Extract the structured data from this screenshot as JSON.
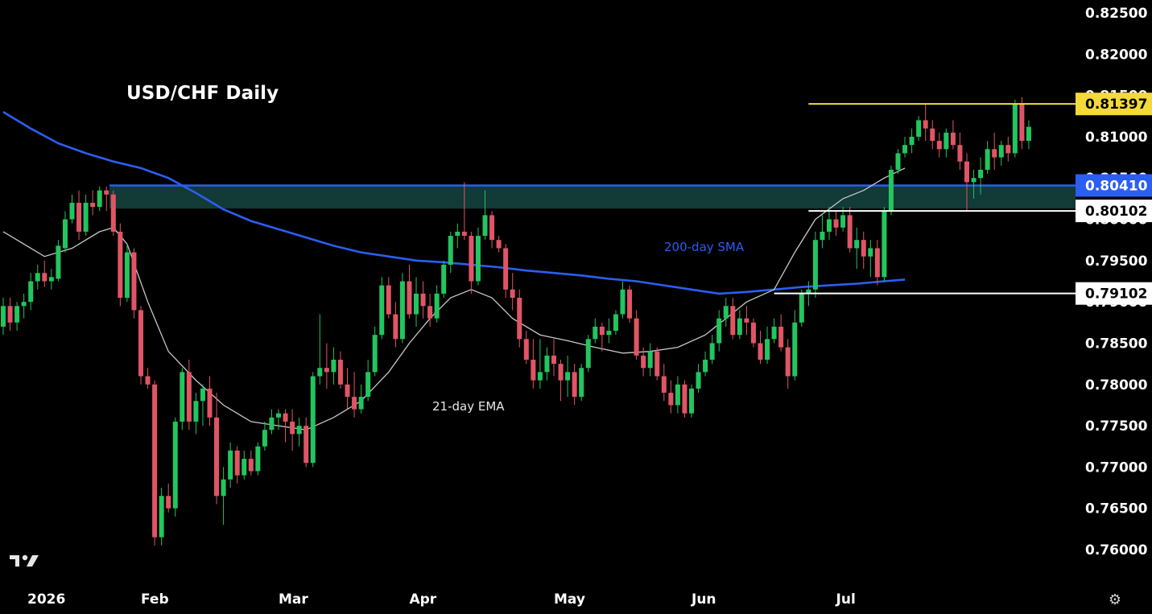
{
  "chart_data": {
    "type": "candlestick",
    "title": "USD/CHF Daily",
    "ylim": [
      0.7565,
      0.8275
    ],
    "y_ticks": [
      "0.82500",
      "0.82000",
      "0.81500",
      "0.81000",
      "0.80500",
      "0.80000",
      "0.79500",
      "0.79000",
      "0.78500",
      "0.78000",
      "0.77500",
      "0.77000",
      "0.76500",
      "0.76000"
    ],
    "x_ticks": [
      {
        "label": "2026",
        "index": 0
      },
      {
        "label": "Feb",
        "index": 20
      },
      {
        "label": "Mar",
        "index": 40
      },
      {
        "label": "Apr",
        "index": 59
      },
      {
        "label": "May",
        "index": 80
      },
      {
        "label": "Jun",
        "index": 100
      },
      {
        "label": "Jul",
        "index": 121
      }
    ],
    "grid": false,
    "colors": {
      "up": "#22c55e",
      "down": "#e05565",
      "sma": "#2b5ef2",
      "ema": "#c8c8c8",
      "zone": "#123a36",
      "zone_line": "#2b5ef2",
      "high_line": "#f4d93a"
    },
    "ohlc": [
      [
        0.787,
        0.7905,
        0.786,
        0.7895
      ],
      [
        0.7895,
        0.7905,
        0.7865,
        0.7875
      ],
      [
        0.7875,
        0.79,
        0.7865,
        0.7895
      ],
      [
        0.7895,
        0.791,
        0.788,
        0.79
      ],
      [
        0.79,
        0.7935,
        0.789,
        0.7925
      ],
      [
        0.7925,
        0.7945,
        0.7915,
        0.7935
      ],
      [
        0.7935,
        0.795,
        0.7918,
        0.7925
      ],
      [
        0.7925,
        0.794,
        0.7915,
        0.793
      ],
      [
        0.7928,
        0.7975,
        0.7925,
        0.7968
      ],
      [
        0.7965,
        0.801,
        0.796,
        0.8
      ],
      [
        0.8,
        0.803,
        0.7995,
        0.802
      ],
      [
        0.802,
        0.8035,
        0.7975,
        0.7985
      ],
      [
        0.7985,
        0.803,
        0.798,
        0.802
      ],
      [
        0.802,
        0.8035,
        0.8005,
        0.8015
      ],
      [
        0.8015,
        0.804,
        0.801,
        0.8035
      ],
      [
        0.8035,
        0.804,
        0.801,
        0.803
      ],
      [
        0.803,
        0.8035,
        0.798,
        0.7985
      ],
      [
        0.7985,
        0.7995,
        0.7895,
        0.7905
      ],
      [
        0.7905,
        0.797,
        0.79,
        0.796
      ],
      [
        0.796,
        0.7965,
        0.788,
        0.789
      ],
      [
        0.789,
        0.7895,
        0.78,
        0.781
      ],
      [
        0.781,
        0.782,
        0.7795,
        0.78
      ],
      [
        0.78,
        0.7805,
        0.7605,
        0.7615
      ],
      [
        0.7615,
        0.7675,
        0.7605,
        0.7665
      ],
      [
        0.7665,
        0.768,
        0.7645,
        0.765
      ],
      [
        0.765,
        0.776,
        0.764,
        0.7755
      ],
      [
        0.7755,
        0.782,
        0.7745,
        0.7815
      ],
      [
        0.7815,
        0.783,
        0.7745,
        0.7755
      ],
      [
        0.7755,
        0.779,
        0.774,
        0.778
      ],
      [
        0.778,
        0.78,
        0.775,
        0.7795
      ],
      [
        0.7795,
        0.781,
        0.775,
        0.776
      ],
      [
        0.776,
        0.779,
        0.7655,
        0.7665
      ],
      [
        0.7665,
        0.77,
        0.763,
        0.7685
      ],
      [
        0.7685,
        0.773,
        0.7675,
        0.772
      ],
      [
        0.772,
        0.7725,
        0.768,
        0.769
      ],
      [
        0.769,
        0.772,
        0.7685,
        0.771
      ],
      [
        0.771,
        0.772,
        0.769,
        0.7695
      ],
      [
        0.7695,
        0.773,
        0.769,
        0.7725
      ],
      [
        0.7725,
        0.7755,
        0.772,
        0.7745
      ],
      [
        0.7745,
        0.777,
        0.774,
        0.776
      ],
      [
        0.776,
        0.777,
        0.7745,
        0.7765
      ],
      [
        0.7765,
        0.777,
        0.773,
        0.7755
      ],
      [
        0.7755,
        0.777,
        0.772,
        0.774
      ],
      [
        0.774,
        0.776,
        0.7725,
        0.775
      ],
      [
        0.775,
        0.776,
        0.77,
        0.7705
      ],
      [
        0.7705,
        0.7815,
        0.77,
        0.781
      ],
      [
        0.781,
        0.7885,
        0.78,
        0.782
      ],
      [
        0.782,
        0.785,
        0.7795,
        0.7815
      ],
      [
        0.7815,
        0.7845,
        0.78,
        0.783
      ],
      [
        0.783,
        0.784,
        0.7795,
        0.78
      ],
      [
        0.78,
        0.782,
        0.777,
        0.7785
      ],
      [
        0.7785,
        0.7815,
        0.776,
        0.777
      ],
      [
        0.777,
        0.78,
        0.7765,
        0.7785
      ],
      [
        0.7785,
        0.783,
        0.778,
        0.7815
      ],
      [
        0.7815,
        0.787,
        0.781,
        0.786
      ],
      [
        0.786,
        0.793,
        0.7855,
        0.792
      ],
      [
        0.792,
        0.793,
        0.788,
        0.7885
      ],
      [
        0.7885,
        0.79,
        0.7845,
        0.7855
      ],
      [
        0.7855,
        0.7935,
        0.785,
        0.7925
      ],
      [
        0.7925,
        0.7945,
        0.788,
        0.7885
      ],
      [
        0.7885,
        0.793,
        0.787,
        0.791
      ],
      [
        0.791,
        0.7925,
        0.788,
        0.7895
      ],
      [
        0.7895,
        0.791,
        0.787,
        0.788
      ],
      [
        0.788,
        0.792,
        0.7875,
        0.791
      ],
      [
        0.791,
        0.795,
        0.7905,
        0.7945
      ],
      [
        0.7945,
        0.7985,
        0.7935,
        0.798
      ],
      [
        0.798,
        0.7995,
        0.7965,
        0.7985
      ],
      [
        0.7985,
        0.8045,
        0.7975,
        0.798
      ],
      [
        0.798,
        0.7985,
        0.791,
        0.7925
      ],
      [
        0.7925,
        0.799,
        0.792,
        0.798
      ],
      [
        0.798,
        0.8035,
        0.7975,
        0.8005
      ],
      [
        0.8005,
        0.801,
        0.7965,
        0.7975
      ],
      [
        0.7975,
        0.798,
        0.796,
        0.7965
      ],
      [
        0.7965,
        0.797,
        0.7905,
        0.7915
      ],
      [
        0.7915,
        0.7935,
        0.789,
        0.7905
      ],
      [
        0.7905,
        0.7915,
        0.7845,
        0.7855
      ],
      [
        0.7855,
        0.7865,
        0.7825,
        0.783
      ],
      [
        0.783,
        0.7855,
        0.7795,
        0.7805
      ],
      [
        0.7805,
        0.7855,
        0.7795,
        0.7815
      ],
      [
        0.7815,
        0.7845,
        0.7805,
        0.7835
      ],
      [
        0.7835,
        0.7855,
        0.781,
        0.7825
      ],
      [
        0.7825,
        0.783,
        0.778,
        0.7805
      ],
      [
        0.7805,
        0.7835,
        0.7785,
        0.7815
      ],
      [
        0.7815,
        0.7825,
        0.7775,
        0.7785
      ],
      [
        0.7785,
        0.7825,
        0.778,
        0.782
      ],
      [
        0.782,
        0.786,
        0.7815,
        0.7855
      ],
      [
        0.7855,
        0.788,
        0.785,
        0.787
      ],
      [
        0.787,
        0.7875,
        0.784,
        0.786
      ],
      [
        0.786,
        0.788,
        0.785,
        0.7865
      ],
      [
        0.7865,
        0.789,
        0.786,
        0.7885
      ],
      [
        0.7885,
        0.7925,
        0.788,
        0.7915
      ],
      [
        0.7915,
        0.792,
        0.7875,
        0.788
      ],
      [
        0.788,
        0.789,
        0.783,
        0.7835
      ],
      [
        0.7835,
        0.7845,
        0.781,
        0.782
      ],
      [
        0.782,
        0.785,
        0.781,
        0.784
      ],
      [
        0.784,
        0.7845,
        0.7805,
        0.781
      ],
      [
        0.781,
        0.7825,
        0.778,
        0.779
      ],
      [
        0.779,
        0.7805,
        0.7765,
        0.7775
      ],
      [
        0.7775,
        0.781,
        0.7765,
        0.78
      ],
      [
        0.78,
        0.7805,
        0.776,
        0.7765
      ],
      [
        0.7765,
        0.78,
        0.776,
        0.7795
      ],
      [
        0.7795,
        0.7825,
        0.779,
        0.7815
      ],
      [
        0.7815,
        0.784,
        0.781,
        0.783
      ],
      [
        0.783,
        0.786,
        0.7825,
        0.785
      ],
      [
        0.785,
        0.789,
        0.784,
        0.788
      ],
      [
        0.788,
        0.7905,
        0.787,
        0.7895
      ],
      [
        0.7895,
        0.7905,
        0.7855,
        0.786
      ],
      [
        0.786,
        0.789,
        0.7855,
        0.788
      ],
      [
        0.788,
        0.7895,
        0.786,
        0.7875
      ],
      [
        0.7875,
        0.788,
        0.7845,
        0.785
      ],
      [
        0.785,
        0.7865,
        0.7825,
        0.783
      ],
      [
        0.783,
        0.787,
        0.7825,
        0.7855
      ],
      [
        0.7855,
        0.788,
        0.785,
        0.787
      ],
      [
        0.787,
        0.7885,
        0.784,
        0.7845
      ],
      [
        0.7845,
        0.7855,
        0.7795,
        0.781
      ],
      [
        0.781,
        0.789,
        0.7805,
        0.7875
      ],
      [
        0.7875,
        0.7915,
        0.787,
        0.791
      ],
      [
        0.791,
        0.7925,
        0.7895,
        0.7915
      ],
      [
        0.7915,
        0.7985,
        0.7905,
        0.7975
      ],
      [
        0.7975,
        0.8005,
        0.7965,
        0.7985
      ]
    ],
    "ohlc_tail_note": "continues below",
    "ohlc_2": [
      [
        0.7985,
        0.8015,
        0.7975,
        0.8
      ],
      [
        0.8,
        0.801,
        0.798,
        0.799
      ],
      [
        0.799,
        0.8015,
        0.7985,
        0.8005
      ],
      [
        0.8005,
        0.8015,
        0.796,
        0.7965
      ],
      [
        0.7965,
        0.799,
        0.794,
        0.7975
      ],
      [
        0.7975,
        0.7985,
        0.794,
        0.7955
      ],
      [
        0.7955,
        0.7975,
        0.793,
        0.7965
      ],
      [
        0.7965,
        0.7975,
        0.792,
        0.793
      ],
      [
        0.793,
        0.8015,
        0.7925,
        0.801
      ],
      [
        0.801,
        0.8065,
        0.8005,
        0.806
      ],
      [
        0.806,
        0.8085,
        0.8055,
        0.808
      ],
      [
        0.808,
        0.81,
        0.8075,
        0.809
      ],
      [
        0.809,
        0.811,
        0.808,
        0.81
      ],
      [
        0.81,
        0.8125,
        0.8095,
        0.812
      ],
      [
        0.812,
        0.814,
        0.8095,
        0.811
      ],
      [
        0.811,
        0.812,
        0.8085,
        0.8095
      ],
      [
        0.8095,
        0.8105,
        0.8075,
        0.8085
      ],
      [
        0.8085,
        0.811,
        0.8075,
        0.8105
      ],
      [
        0.8105,
        0.812,
        0.8085,
        0.809
      ],
      [
        0.809,
        0.8105,
        0.806,
        0.807
      ],
      [
        0.807,
        0.808,
        0.801,
        0.8045
      ],
      [
        0.8045,
        0.806,
        0.8025,
        0.805
      ],
      [
        0.805,
        0.8075,
        0.803,
        0.806
      ],
      [
        0.806,
        0.8095,
        0.8055,
        0.8085
      ],
      [
        0.8085,
        0.8105,
        0.806,
        0.8075
      ],
      [
        0.8075,
        0.8095,
        0.8065,
        0.809
      ],
      [
        0.809,
        0.81,
        0.807,
        0.808
      ],
      [
        0.808,
        0.8145,
        0.8075,
        0.814
      ],
      [
        0.814,
        0.8148,
        0.8085,
        0.8095
      ],
      [
        0.8095,
        0.812,
        0.8085,
        0.8112
      ]
    ],
    "ema21": [
      [
        0,
        0.7985
      ],
      [
        3,
        0.797
      ],
      [
        6,
        0.7955
      ],
      [
        10,
        0.7965
      ],
      [
        14,
        0.7985
      ],
      [
        16,
        0.799
      ],
      [
        18,
        0.797
      ],
      [
        21,
        0.79
      ],
      [
        24,
        0.784
      ],
      [
        28,
        0.7805
      ],
      [
        32,
        0.7775
      ],
      [
        36,
        0.7755
      ],
      [
        40,
        0.775
      ],
      [
        44,
        0.7745
      ],
      [
        48,
        0.776
      ],
      [
        52,
        0.778
      ],
      [
        56,
        0.7815
      ],
      [
        59,
        0.785
      ],
      [
        62,
        0.788
      ],
      [
        65,
        0.7905
      ],
      [
        68,
        0.7915
      ],
      [
        71,
        0.7905
      ],
      [
        74,
        0.788
      ],
      [
        78,
        0.786
      ],
      [
        82,
        0.7853
      ],
      [
        86,
        0.7845
      ],
      [
        90,
        0.7838
      ],
      [
        94,
        0.784
      ],
      [
        98,
        0.7845
      ],
      [
        102,
        0.786
      ],
      [
        105,
        0.788
      ],
      [
        108,
        0.79
      ],
      [
        112,
        0.7915
      ],
      [
        115,
        0.796
      ],
      [
        118,
        0.8
      ],
      [
        122,
        0.8025
      ],
      [
        125,
        0.8035
      ],
      [
        128,
        0.805
      ],
      [
        131,
        0.8062
      ]
    ],
    "sma200": [
      [
        0,
        0.813
      ],
      [
        4,
        0.811
      ],
      [
        8,
        0.8092
      ],
      [
        12,
        0.808
      ],
      [
        16,
        0.807
      ],
      [
        20,
        0.8062
      ],
      [
        24,
        0.805
      ],
      [
        28,
        0.8032
      ],
      [
        32,
        0.8012
      ],
      [
        36,
        0.7998
      ],
      [
        40,
        0.7988
      ],
      [
        44,
        0.7978
      ],
      [
        48,
        0.7968
      ],
      [
        52,
        0.796
      ],
      [
        56,
        0.7955
      ],
      [
        60,
        0.795
      ],
      [
        64,
        0.7948
      ],
      [
        68,
        0.7945
      ],
      [
        72,
        0.7942
      ],
      [
        76,
        0.7938
      ],
      [
        80,
        0.7935
      ],
      [
        84,
        0.7932
      ],
      [
        88,
        0.7928
      ],
      [
        92,
        0.7925
      ],
      [
        96,
        0.792
      ],
      [
        100,
        0.7915
      ],
      [
        104,
        0.791
      ],
      [
        108,
        0.7912
      ],
      [
        112,
        0.7915
      ],
      [
        116,
        0.7918
      ],
      [
        120,
        0.792
      ],
      [
        124,
        0.7922
      ],
      [
        128,
        0.7925
      ],
      [
        131,
        0.7927
      ]
    ],
    "annotations": {
      "zone": {
        "top": 0.8041,
        "bottom": 0.8013,
        "line": 0.8041
      },
      "sma_label": "200-day SMA",
      "ema_label": "21-day EMA"
    },
    "price_labels": [
      {
        "value": 0.81397,
        "text": "0.81397",
        "style": "yellow"
      },
      {
        "value": 0.8041,
        "text": "0.80410",
        "style": "blue"
      },
      {
        "value": 0.80102,
        "text": "0.80102",
        "style": "white"
      },
      {
        "value": 0.79102,
        "text": "0.79102",
        "style": "white"
      }
    ]
  }
}
